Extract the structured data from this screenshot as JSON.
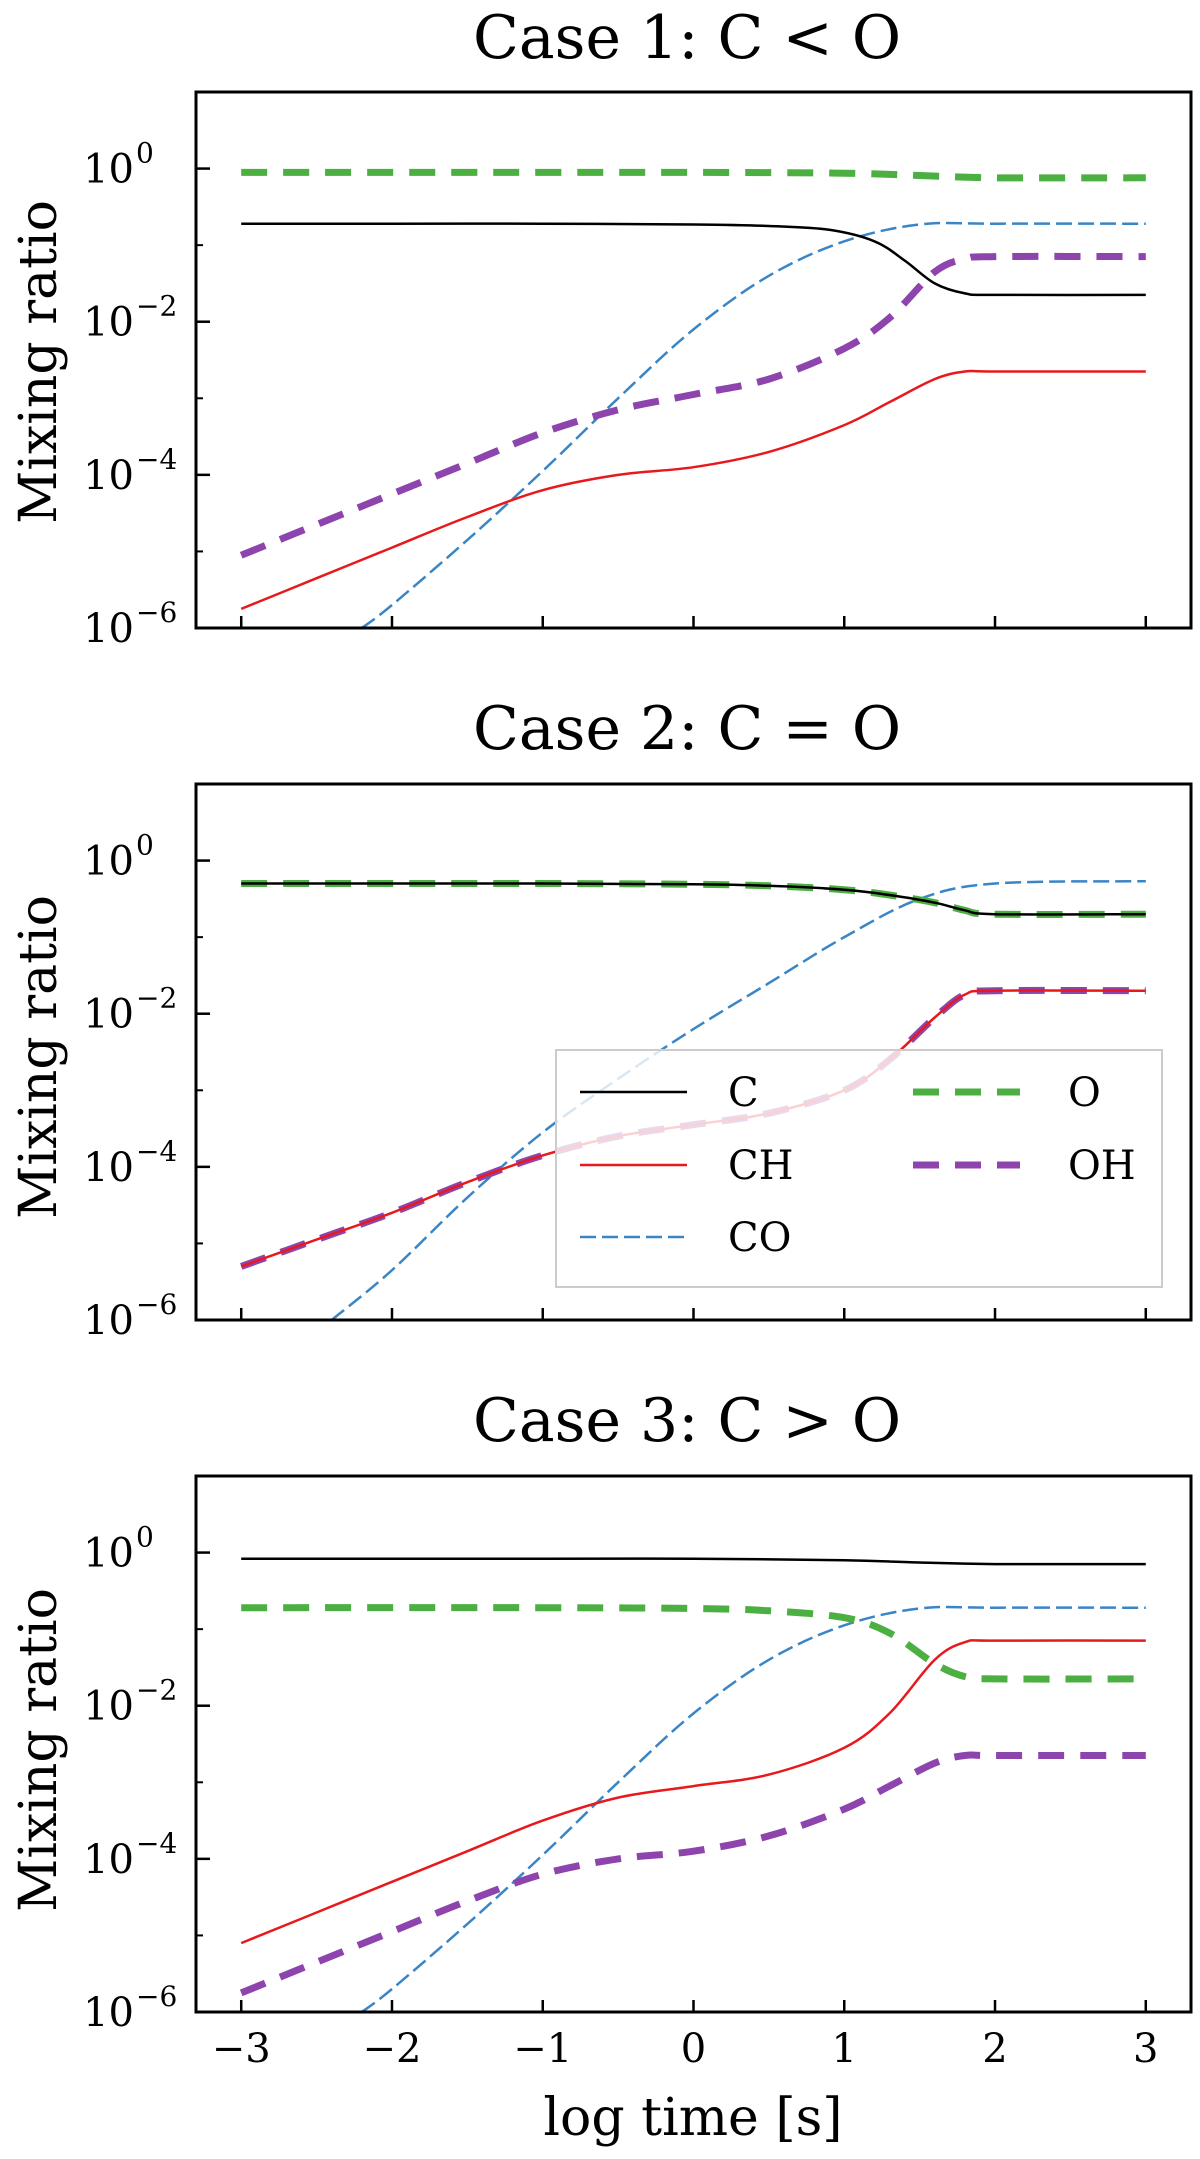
{
  "figure": {
    "xlabel": "log time [s]",
    "ylabel": "Mixing ratio",
    "xlim": [
      -3.3,
      3.3
    ],
    "ylim_log10": [
      -6,
      1
    ],
    "xticks": [
      -3,
      -2,
      -1,
      0,
      1,
      2,
      3
    ],
    "xtick_labels": [
      "−3",
      "−2",
      "−1",
      "0",
      "1",
      "2",
      "3"
    ],
    "yticks": [
      {
        "base": "10",
        "exp": "0",
        "value": 0
      },
      {
        "base": "10",
        "exp": "−2",
        "value": -2
      },
      {
        "base": "10",
        "exp": "−4",
        "value": -4
      },
      {
        "base": "10",
        "exp": "−6",
        "value": -6
      }
    ]
  },
  "legend": {
    "panel": 1,
    "entries": [
      {
        "label": "C",
        "series": "C"
      },
      {
        "label": "O",
        "series": "O"
      },
      {
        "label": "CH",
        "series": "CH"
      },
      {
        "label": "OH",
        "series": "OH"
      },
      {
        "label": "CO",
        "series": "CO"
      }
    ]
  },
  "colors": {
    "C": "#000000",
    "CH": "#e8191c",
    "CO": "#3a85c6",
    "O": "#4caf41",
    "OH": "#8e44ad"
  },
  "chart_data": [
    {
      "type": "line",
      "title": "Case 1: C < O",
      "xlabel": "",
      "ylabel": "Mixing ratio",
      "yscale": "log",
      "series": [
        {
          "name": "C",
          "style": "solid",
          "x": [
            -3,
            -2,
            -1,
            0,
            0.5,
            0.9,
            1.2,
            1.4,
            1.6,
            1.8,
            2,
            3
          ],
          "log10_y": [
            -0.72,
            -0.72,
            -0.72,
            -0.73,
            -0.75,
            -0.8,
            -0.95,
            -1.2,
            -1.5,
            -1.63,
            -1.65,
            -1.65
          ]
        },
        {
          "name": "CH",
          "style": "solid",
          "x": [
            -3,
            -2.5,
            -2,
            -1.5,
            -1,
            -0.5,
            0,
            0.5,
            1,
            1.3,
            1.6,
            1.8,
            2,
            3
          ],
          "log10_y": [
            -5.75,
            -5.35,
            -4.95,
            -4.55,
            -4.2,
            -4.0,
            -3.9,
            -3.7,
            -3.35,
            -3.05,
            -2.75,
            -2.65,
            -2.65,
            -2.65
          ]
        },
        {
          "name": "CO",
          "style": "dashed",
          "x": [
            -2.2,
            -2,
            -1.5,
            -1,
            -0.5,
            0,
            0.5,
            1,
            1.5,
            2,
            3
          ],
          "log10_y": [
            -6.0,
            -5.7,
            -4.85,
            -3.95,
            -3.0,
            -2.1,
            -1.4,
            -0.95,
            -0.73,
            -0.72,
            -0.72
          ]
        },
        {
          "name": "O",
          "style": "dashed",
          "x": [
            -3,
            -1,
            0,
            1,
            1.5,
            2,
            3
          ],
          "log10_y": [
            -0.05,
            -0.05,
            -0.05,
            -0.06,
            -0.09,
            -0.12,
            -0.12
          ]
        },
        {
          "name": "OH",
          "style": "dashed",
          "x": [
            -3,
            -2.5,
            -2,
            -1.5,
            -1,
            -0.5,
            0,
            0.5,
            1,
            1.3,
            1.6,
            1.8,
            2,
            3
          ],
          "log10_y": [
            -5.05,
            -4.65,
            -4.25,
            -3.85,
            -3.45,
            -3.15,
            -2.95,
            -2.75,
            -2.35,
            -1.95,
            -1.35,
            -1.18,
            -1.15,
            -1.15
          ]
        }
      ]
    },
    {
      "type": "line",
      "title": "Case 2: C = O",
      "xlabel": "",
      "ylabel": "Mixing ratio",
      "yscale": "log",
      "series": [
        {
          "name": "C",
          "style": "solid",
          "x": [
            -3,
            -1,
            0,
            0.5,
            1,
            1.3,
            1.6,
            1.8,
            2,
            3
          ],
          "log10_y": [
            -0.3,
            -0.3,
            -0.31,
            -0.33,
            -0.38,
            -0.45,
            -0.55,
            -0.65,
            -0.7,
            -0.7
          ]
        },
        {
          "name": "CH",
          "style": "solid",
          "x": [
            -3,
            -2.5,
            -2,
            -1.5,
            -1,
            -0.5,
            0,
            0.5,
            1,
            1.3,
            1.6,
            1.8,
            2,
            3
          ],
          "log10_y": [
            -5.3,
            -4.95,
            -4.6,
            -4.2,
            -3.85,
            -3.6,
            -3.45,
            -3.3,
            -3.0,
            -2.6,
            -2.05,
            -1.75,
            -1.7,
            -1.7
          ]
        },
        {
          "name": "CO",
          "style": "dashed",
          "x": [
            -2.4,
            -2,
            -1.5,
            -1,
            -0.5,
            0,
            0.5,
            1,
            1.5,
            2,
            3
          ],
          "log10_y": [
            -6.0,
            -5.35,
            -4.4,
            -3.55,
            -2.85,
            -2.2,
            -1.6,
            -1.0,
            -0.5,
            -0.3,
            -0.27
          ]
        },
        {
          "name": "O",
          "style": "dashed",
          "x": [
            -3,
            -1,
            0,
            0.5,
            1,
            1.3,
            1.6,
            1.8,
            2,
            3
          ],
          "log10_y": [
            -0.3,
            -0.3,
            -0.31,
            -0.33,
            -0.38,
            -0.45,
            -0.55,
            -0.65,
            -0.7,
            -0.7
          ]
        },
        {
          "name": "OH",
          "style": "dashed",
          "x": [
            -3,
            -2.5,
            -2,
            -1.5,
            -1,
            -0.5,
            0,
            0.5,
            1,
            1.3,
            1.6,
            1.8,
            2,
            3
          ],
          "log10_y": [
            -5.3,
            -4.95,
            -4.6,
            -4.2,
            -3.85,
            -3.6,
            -3.45,
            -3.3,
            -3.0,
            -2.6,
            -2.05,
            -1.75,
            -1.7,
            -1.7
          ]
        }
      ]
    },
    {
      "type": "line",
      "title": "Case 3: C > O",
      "xlabel": "log time [s]",
      "ylabel": "Mixing ratio",
      "yscale": "log",
      "series": [
        {
          "name": "C",
          "style": "solid",
          "x": [
            -3,
            -1,
            0,
            1,
            1.5,
            2,
            3
          ],
          "log10_y": [
            -0.08,
            -0.08,
            -0.08,
            -0.1,
            -0.13,
            -0.15,
            -0.15
          ]
        },
        {
          "name": "CH",
          "style": "solid",
          "x": [
            -3,
            -2.5,
            -2,
            -1.5,
            -1,
            -0.5,
            0,
            0.5,
            1,
            1.3,
            1.6,
            1.8,
            2,
            3
          ],
          "log10_y": [
            -5.1,
            -4.7,
            -4.3,
            -3.9,
            -3.5,
            -3.2,
            -3.05,
            -2.9,
            -2.55,
            -2.1,
            -1.4,
            -1.17,
            -1.15,
            -1.15
          ]
        },
        {
          "name": "CO",
          "style": "dashed",
          "x": [
            -2.2,
            -2,
            -1.5,
            -1,
            -0.5,
            0,
            0.5,
            1,
            1.5,
            2,
            3
          ],
          "log10_y": [
            -6.0,
            -5.7,
            -4.85,
            -3.95,
            -3.0,
            -2.1,
            -1.4,
            -0.95,
            -0.73,
            -0.72,
            -0.72
          ]
        },
        {
          "name": "O",
          "style": "dashed",
          "x": [
            -3,
            -1,
            0,
            0.5,
            1,
            1.3,
            1.6,
            1.8,
            2,
            3
          ],
          "log10_y": [
            -0.72,
            -0.72,
            -0.73,
            -0.76,
            -0.85,
            -1.05,
            -1.45,
            -1.62,
            -1.65,
            -1.65
          ]
        },
        {
          "name": "OH",
          "style": "dashed",
          "x": [
            -3,
            -2.5,
            -2,
            -1.5,
            -1,
            -0.5,
            0,
            0.5,
            1,
            1.3,
            1.6,
            1.8,
            2,
            3
          ],
          "log10_y": [
            -5.75,
            -5.35,
            -4.95,
            -4.55,
            -4.2,
            -4.0,
            -3.9,
            -3.7,
            -3.35,
            -3.05,
            -2.75,
            -2.65,
            -2.65,
            -2.65
          ]
        }
      ]
    }
  ]
}
